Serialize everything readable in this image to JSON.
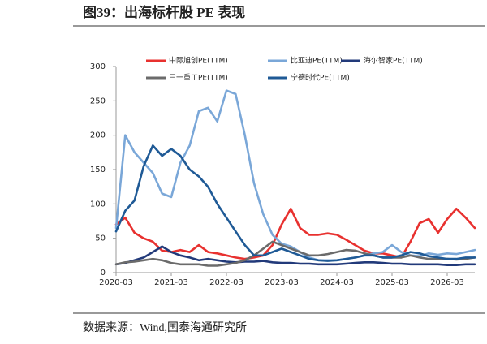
{
  "chart_data": {
    "type": "line",
    "title": "图39：出海标杆股 PE 表现",
    "source": "数据来源：Wind,国泰海通研究所",
    "x": [
      "2020-03",
      "2020-05",
      "2020-07",
      "2020-09",
      "2020-11",
      "2021-01",
      "2021-03",
      "2021-05",
      "2021-07",
      "2021-09",
      "2021-11",
      "2022-01",
      "2022-03",
      "2022-05",
      "2022-07",
      "2022-09",
      "2022-11",
      "2023-01",
      "2023-03",
      "2023-05",
      "2023-07",
      "2023-09",
      "2023-11",
      "2024-01",
      "2024-03",
      "2024-05",
      "2024-07",
      "2024-09",
      "2024-11",
      "2025-01",
      "2025-03",
      "2025-05",
      "2025-07",
      "2025-09",
      "2025-11",
      "2026-01",
      "2026-03",
      "2026-05",
      "2026-07",
      "2026-09"
    ],
    "xlim": [
      "2020-03",
      "2026-09"
    ],
    "xticks": [
      "2020-03",
      "2021-03",
      "2022-03",
      "2023-03",
      "2024-03",
      "2025-03",
      "2026-03"
    ],
    "ylim": [
      0,
      300
    ],
    "yticks": [
      0,
      50,
      100,
      150,
      200,
      250,
      300
    ],
    "series": [
      {
        "name": "中际旭创PE(TTM)",
        "color": "#e8312f",
        "values": [
          70,
          80,
          58,
          50,
          45,
          32,
          30,
          33,
          30,
          40,
          30,
          28,
          25,
          22,
          20,
          22,
          25,
          40,
          70,
          93,
          65,
          55,
          55,
          57,
          55,
          48,
          40,
          32,
          28,
          28,
          25,
          22,
          45,
          72,
          78,
          58,
          78,
          93,
          80,
          65
        ]
      },
      {
        "name": "比亚迪PE(TTM)",
        "color": "#7aa7d8",
        "values": [
          65,
          200,
          175,
          160,
          145,
          115,
          110,
          160,
          185,
          235,
          240,
          220,
          265,
          260,
          200,
          130,
          85,
          55,
          42,
          38,
          30,
          22,
          18,
          18,
          18,
          20,
          22,
          25,
          28,
          30,
          40,
          30,
          25,
          24,
          28,
          26,
          28,
          27,
          30,
          33
        ]
      },
      {
        "name": "海尔智家PE(TTM)",
        "color": "#223a7a",
        "values": [
          12,
          14,
          18,
          22,
          30,
          38,
          30,
          25,
          22,
          18,
          20,
          18,
          16,
          15,
          16,
          16,
          17,
          15,
          14,
          14,
          13,
          13,
          12,
          12,
          12,
          13,
          14,
          15,
          15,
          14,
          13,
          13,
          12,
          12,
          12,
          12,
          11,
          11,
          12,
          12
        ]
      },
      {
        "name": "三一重工PE(TTM)",
        "color": "#6b6b6b",
        "values": [
          12,
          15,
          16,
          18,
          20,
          18,
          14,
          12,
          12,
          12,
          10,
          10,
          12,
          14,
          18,
          25,
          35,
          45,
          40,
          35,
          30,
          25,
          25,
          27,
          30,
          33,
          32,
          28,
          25,
          22,
          22,
          22,
          25,
          22,
          20,
          20,
          20,
          19,
          20,
          22
        ]
      },
      {
        "name": "宁德时代PE(TTM)",
        "color": "#1f5a96",
        "values": [
          60,
          90,
          105,
          155,
          185,
          170,
          180,
          170,
          150,
          140,
          125,
          100,
          80,
          60,
          40,
          25,
          25,
          30,
          35,
          30,
          25,
          20,
          18,
          17,
          18,
          20,
          22,
          25,
          25,
          22,
          22,
          25,
          30,
          28,
          24,
          22,
          20,
          20,
          22,
          22
        ]
      }
    ]
  }
}
